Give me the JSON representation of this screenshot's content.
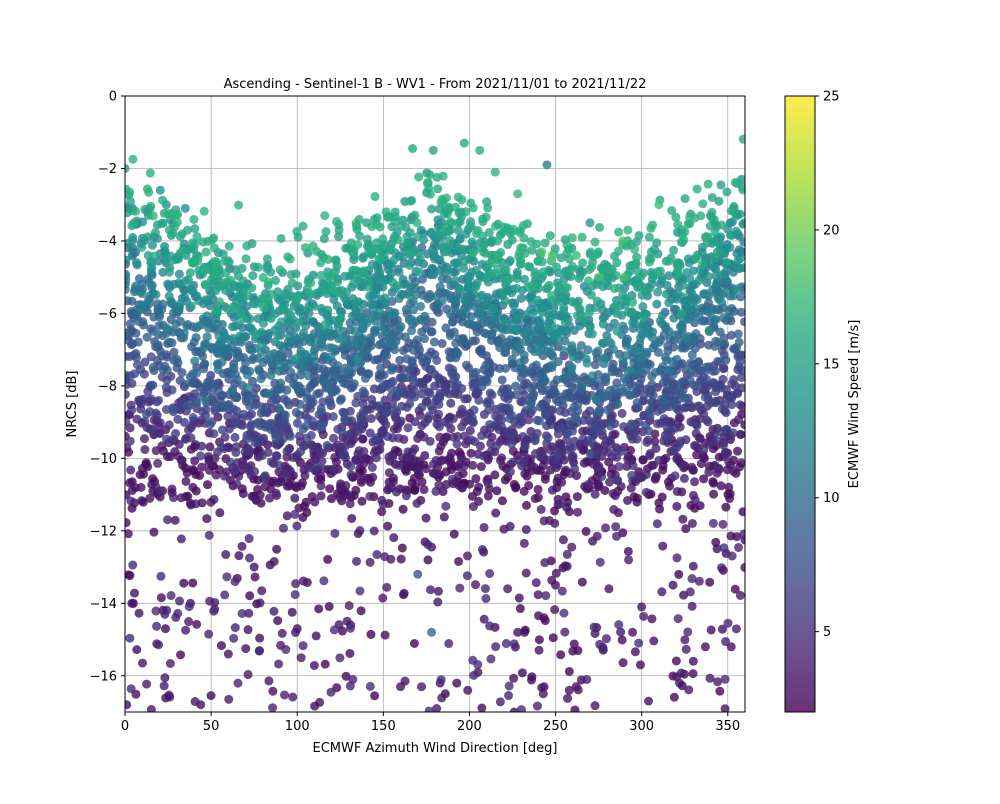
{
  "chart_data": {
    "type": "scatter",
    "title": "Ascending - Sentinel-1 B - WV1 - From 2021/11/01 to 2021/11/22",
    "xlabel": "ECMWF Azimuth Wind Direction [deg]",
    "ylabel": "NRCS [dB]",
    "xlim": [
      0,
      360
    ],
    "ylim": [
      -17,
      0
    ],
    "xticks": [
      0,
      50,
      100,
      150,
      200,
      250,
      300,
      350
    ],
    "yticks": [
      0,
      -2,
      -4,
      -6,
      -8,
      -10,
      -12,
      -14,
      -16
    ],
    "grid": true,
    "colorbar": {
      "label": "ECMWF Wind Speed [m/s]",
      "range": [
        2,
        25
      ],
      "ticks": [
        5,
        10,
        15,
        20,
        25
      ],
      "colormap": "viridis",
      "alpha": 0.8
    },
    "marker_alpha": 0.8,
    "point_count_approx": 4500,
    "series": [
      {
        "points": [
          [
            0,
            -2.0,
            14.5
          ],
          [
            20.5,
            -2.6,
            14.0
          ],
          [
            24,
            -3.0,
            13.8
          ],
          [
            35,
            -3.1,
            13.5
          ],
          [
            197,
            -1.3,
            16.0
          ],
          [
            167,
            -1.45,
            15.8
          ],
          [
            179,
            -1.5,
            15.5
          ],
          [
            206,
            -1.5,
            16.5
          ],
          [
            245,
            -1.9,
            12.0
          ],
          [
            215,
            -2.1,
            16.8
          ],
          [
            228,
            -2.7,
            17.2
          ],
          [
            116,
            -3.3,
            17.0
          ],
          [
            310,
            -3.0,
            18.0
          ],
          [
            358,
            -2.3,
            14.0
          ],
          [
            270,
            -3.5,
            14.5
          ],
          [
            292,
            -3.7,
            17.0
          ],
          [
            340,
            -3.3,
            12.5
          ],
          [
            242,
            -4.3,
            18.5
          ],
          [
            248,
            -4.4,
            19.0
          ],
          [
            262,
            -4.4,
            17.5
          ],
          [
            289,
            -4.0,
            18.0
          ],
          [
            275,
            -5.0,
            18.0
          ],
          [
            290,
            -5.0,
            18.0
          ],
          [
            178,
            -14.8,
            10.0
          ],
          [
            170,
            -13.2,
            8.0
          ],
          [
            44,
            -16.8,
            3.0
          ],
          [
            1,
            -16.8,
            3.0
          ],
          [
            60,
            -15.4,
            3.0
          ],
          [
            160,
            -16.3,
            3.0
          ],
          [
            183,
            -16.2,
            3.0
          ],
          [
            199,
            -16.4,
            3.0
          ],
          [
            226,
            -17.0,
            3.0
          ],
          [
            304,
            -16.7,
            3.0
          ],
          [
            322,
            -16.2,
            3.0
          ],
          [
            258,
            -16.4,
            3.0
          ],
          [
            262,
            -16.3,
            3.0
          ],
          [
            4,
            -14.0,
            3.0
          ],
          [
            38,
            -14.0,
            3.0
          ],
          [
            75,
            -13.0,
            3.0
          ],
          [
            100,
            -14.7,
            3.0
          ],
          [
            111,
            -14.9,
            3.0
          ],
          [
            131,
            -14.6,
            3.0
          ],
          [
            228,
            -14.8,
            3.0
          ],
          [
            232,
            -14.8,
            3.0
          ],
          [
            250,
            -13.5,
            3.0
          ],
          [
            281,
            -13.6,
            3.0
          ],
          [
            300,
            -14.1,
            3.0
          ],
          [
            337,
            -15.2,
            3.0
          ],
          [
            352,
            -15.2,
            3.0
          ],
          [
            330,
            -15.6,
            3.0
          ]
        ]
      }
    ]
  }
}
